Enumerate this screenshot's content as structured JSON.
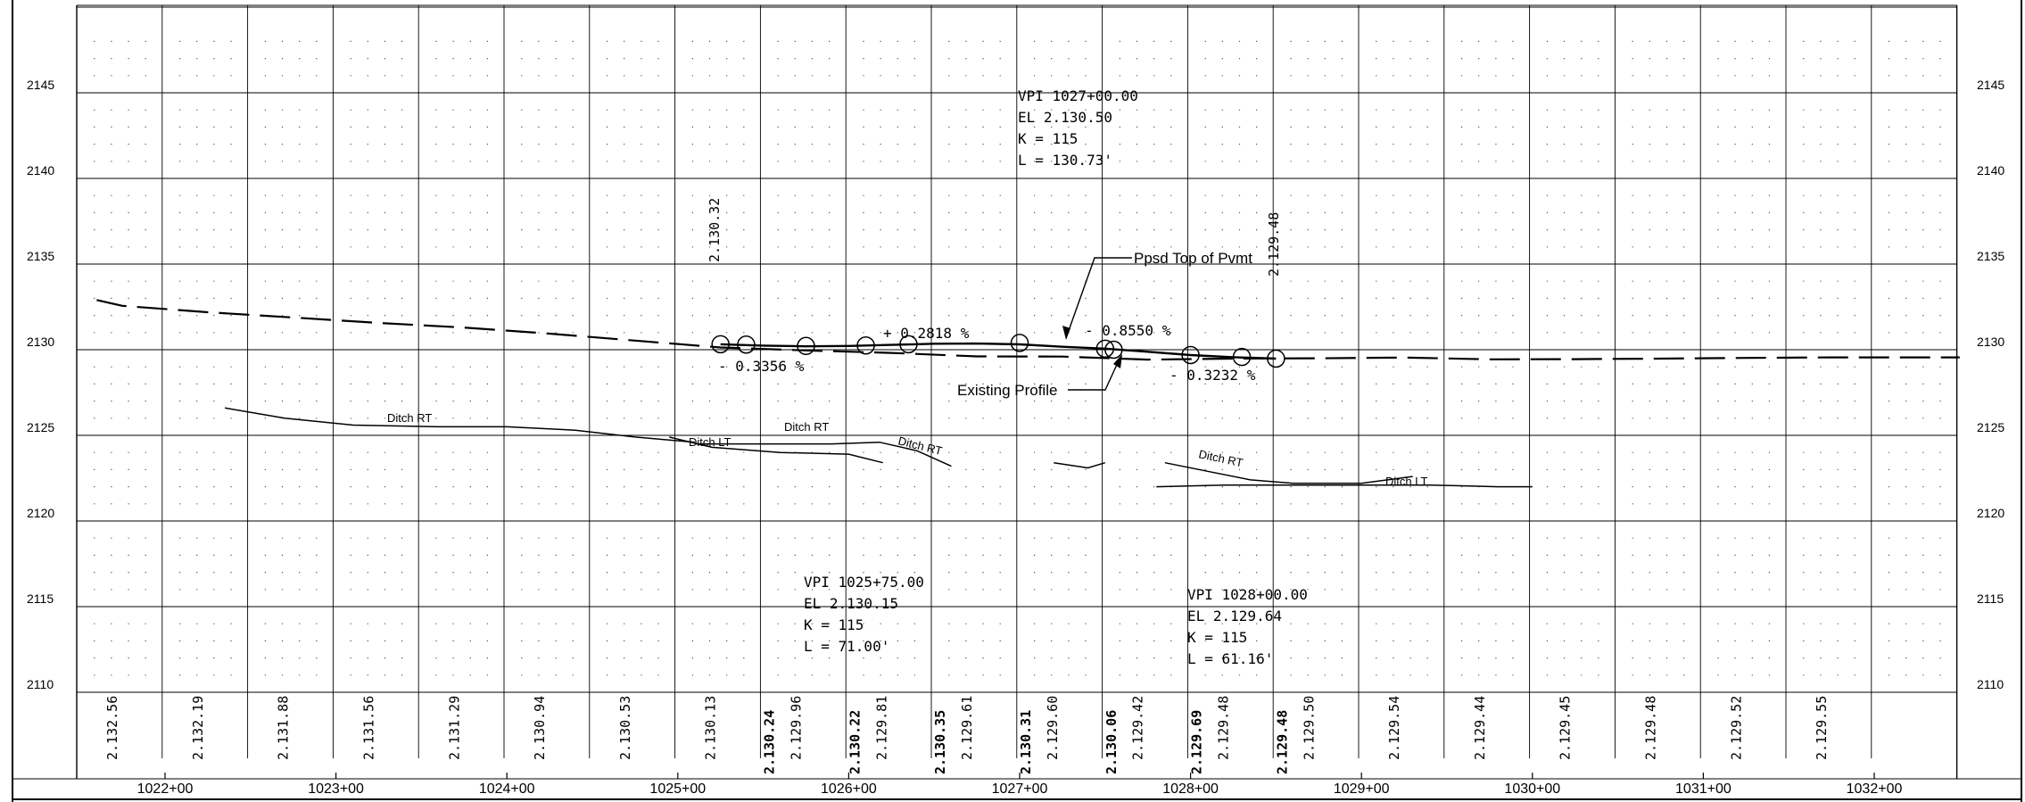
{
  "elevation_labels": [
    "2145",
    "2140",
    "2135",
    "2130",
    "2125",
    "2120",
    "2115",
    "2110"
  ],
  "station_labels": [
    "1022+00",
    "1023+00",
    "1024+00",
    "1025+00",
    "1026+00",
    "1027+00",
    "1028+00",
    "1029+00",
    "1030+00",
    "1031+00",
    "1032+00"
  ],
  "existing_elevations": [
    {
      "sta": 1021.75,
      "text": "2.132.56"
    },
    {
      "sta": 1022.25,
      "text": "2.132.19"
    },
    {
      "sta": 1022.75,
      "text": "2.131.88"
    },
    {
      "sta": 1023.25,
      "text": "2.131.56"
    },
    {
      "sta": 1023.75,
      "text": "2.131.29"
    },
    {
      "sta": 1024.25,
      "text": "2.130.94"
    },
    {
      "sta": 1024.75,
      "text": "2.130.53"
    },
    {
      "sta": 1025.25,
      "text": "2.130.13"
    },
    {
      "sta": 1025.75,
      "text": "2.129.96"
    },
    {
      "sta": 1026.25,
      "text": "2.129.81"
    },
    {
      "sta": 1026.75,
      "text": "2.129.61"
    },
    {
      "sta": 1027.25,
      "text": "2.129.60"
    },
    {
      "sta": 1027.75,
      "text": "2.129.42"
    },
    {
      "sta": 1028.25,
      "text": "2.129.48"
    },
    {
      "sta": 1028.75,
      "text": "2.129.50"
    },
    {
      "sta": 1029.25,
      "text": "2.129.54"
    },
    {
      "sta": 1029.75,
      "text": "2.129.44"
    },
    {
      "sta": 1030.25,
      "text": "2.129.45"
    },
    {
      "sta": 1030.75,
      "text": "2.129.48"
    },
    {
      "sta": 1031.25,
      "text": "2.129.52"
    },
    {
      "sta": 1031.75,
      "text": "2.129.55"
    }
  ],
  "proposed_elevations": [
    {
      "sta": 1025.5,
      "text": "2.130.24"
    },
    {
      "sta": 1026.0,
      "text": "2.130.22"
    },
    {
      "sta": 1026.5,
      "text": "2.130.35"
    },
    {
      "sta": 1027.0,
      "text": "2.130.31"
    },
    {
      "sta": 1027.5,
      "text": "2.130.06"
    },
    {
      "sta": 1028.0,
      "text": "2.129.69"
    },
    {
      "sta": 1028.5,
      "text": "2.129.48"
    }
  ],
  "grades": {
    "g1": "- 0.3356 %",
    "g2": "+ 0.2818 %",
    "g3": "- 0.8550 %",
    "g4": "- 0.3232 %"
  },
  "vertical_elevations": {
    "a": "2.130.32",
    "b": "2.129.48"
  },
  "vpi_blocks": {
    "vpi1": [
      "VPI 1025+75.00",
      "EL 2.130.15",
      "K = 115",
      "L = 71.00'"
    ],
    "vpi2": [
      "VPI 1027+00.00",
      "EL 2.130.50",
      "K = 115",
      "L = 130.73'"
    ],
    "vpi3": [
      "VPI 1028+00.00",
      "EL 2.129.64",
      "K = 115",
      "L = 61.16'"
    ]
  },
  "callouts": {
    "proposed": "Ppsd Top of Pvmt",
    "existing": "Existing Profile"
  },
  "ditch_labels": {
    "d1": "Ditch RT",
    "d2": "Ditch LT",
    "d3": "Ditch RT",
    "d4": "Ditch RT",
    "d5": "Ditch RT",
    "d6": "Ditch LT"
  },
  "chart_data": {
    "type": "line",
    "title": "",
    "xlabel": "",
    "ylabel": "",
    "xlim": [
      1021.6,
      1032.5
    ],
    "ylim": [
      2110,
      2150
    ],
    "x_ticks": [
      "1022+00",
      "1023+00",
      "1024+00",
      "1025+00",
      "1026+00",
      "1027+00",
      "1028+00",
      "1029+00",
      "1030+00",
      "1031+00",
      "1032+00"
    ],
    "y_ticks": [
      2110,
      2115,
      2120,
      2125,
      2130,
      2135,
      2140,
      2145
    ],
    "grid": true,
    "series": [
      {
        "name": "Existing Profile",
        "style": "dashed",
        "x": [
          1021.6,
          1021.75,
          1022.25,
          1022.75,
          1023.25,
          1023.75,
          1024.25,
          1024.75,
          1025.25,
          1025.75,
          1026.25,
          1026.75,
          1027.25,
          1027.75,
          1028.25,
          1028.75,
          1029.25,
          1029.75,
          1030.25,
          1030.75,
          1031.25,
          1031.75,
          1032.5
        ],
        "y": [
          2132.9,
          2132.56,
          2132.19,
          2131.88,
          2131.56,
          2131.29,
          2130.94,
          2130.53,
          2130.13,
          2129.96,
          2129.81,
          2129.61,
          2129.6,
          2129.42,
          2129.48,
          2129.5,
          2129.54,
          2129.44,
          2129.45,
          2129.48,
          2129.52,
          2129.55,
          2129.55
        ]
      },
      {
        "name": "Ppsd Top of Pvmt",
        "style": "solid",
        "x": [
          1025.25,
          1025.5,
          1025.75,
          1026.0,
          1026.25,
          1026.5,
          1026.75,
          1027.0,
          1027.25,
          1027.5,
          1027.75,
          1028.0,
          1028.25,
          1028.5
        ],
        "y": [
          2130.32,
          2130.24,
          2130.2,
          2130.22,
          2130.28,
          2130.35,
          2130.36,
          2130.31,
          2130.17,
          2130.06,
          2129.88,
          2129.69,
          2129.56,
          2129.48
        ]
      },
      {
        "name": "Ditch RT",
        "style": "solid",
        "x": [
          1022.35,
          1022.7,
          1023.1,
          1023.6,
          1024.0,
          1024.4,
          1024.75,
          1025.1
        ],
        "y": [
          2126.6,
          2126.0,
          2125.6,
          2125.5,
          2125.5,
          2125.3,
          2124.9,
          2124.6
        ]
      },
      {
        "name": "Ditch LT",
        "style": "solid",
        "x": [
          1024.95,
          1025.2,
          1025.6,
          1026.0,
          1026.2
        ],
        "y": [
          2124.9,
          2124.3,
          2124.0,
          2123.9,
          2123.4
        ]
      },
      {
        "name": "Ditch RT",
        "style": "solid",
        "x": [
          1025.1,
          1025.5,
          1025.9,
          1026.18,
          1026.4,
          1026.6
        ],
        "y": [
          2124.5,
          2124.5,
          2124.5,
          2124.6,
          2124.1,
          2123.2
        ]
      },
      {
        "name": "Ditch RT",
        "style": "solid",
        "x": [
          1027.85,
          1028.1,
          1028.35,
          1028.6,
          1029.0,
          1029.3
        ],
        "y": [
          2123.4,
          2122.9,
          2122.4,
          2122.2,
          2122.2,
          2122.6
        ]
      },
      {
        "name": "Ditch LT",
        "style": "solid",
        "x": [
          1027.8,
          1028.2,
          1028.6,
          1029.0,
          1029.4,
          1029.8,
          1030.0
        ],
        "y": [
          2122.0,
          2122.1,
          2122.1,
          2122.1,
          2122.1,
          2122.0,
          2122.0
        ]
      },
      {
        "name": "",
        "style": "solid",
        "x": [
          1027.2,
          1027.4,
          1027.5
        ],
        "y": [
          2123.4,
          2123.1,
          2123.4
        ]
      }
    ],
    "pvi_markers_x": [
      1025.25,
      1025.4,
      1025.75,
      1026.1,
      1026.35,
      1027.0,
      1027.5,
      1027.55,
      1028.0,
      1028.3,
      1028.5
    ],
    "pvi_markers_y": [
      2130.32,
      2130.3,
      2130.22,
      2130.25,
      2130.32,
      2130.4,
      2130.06,
      2130.0,
      2129.69,
      2129.58,
      2129.48
    ]
  }
}
